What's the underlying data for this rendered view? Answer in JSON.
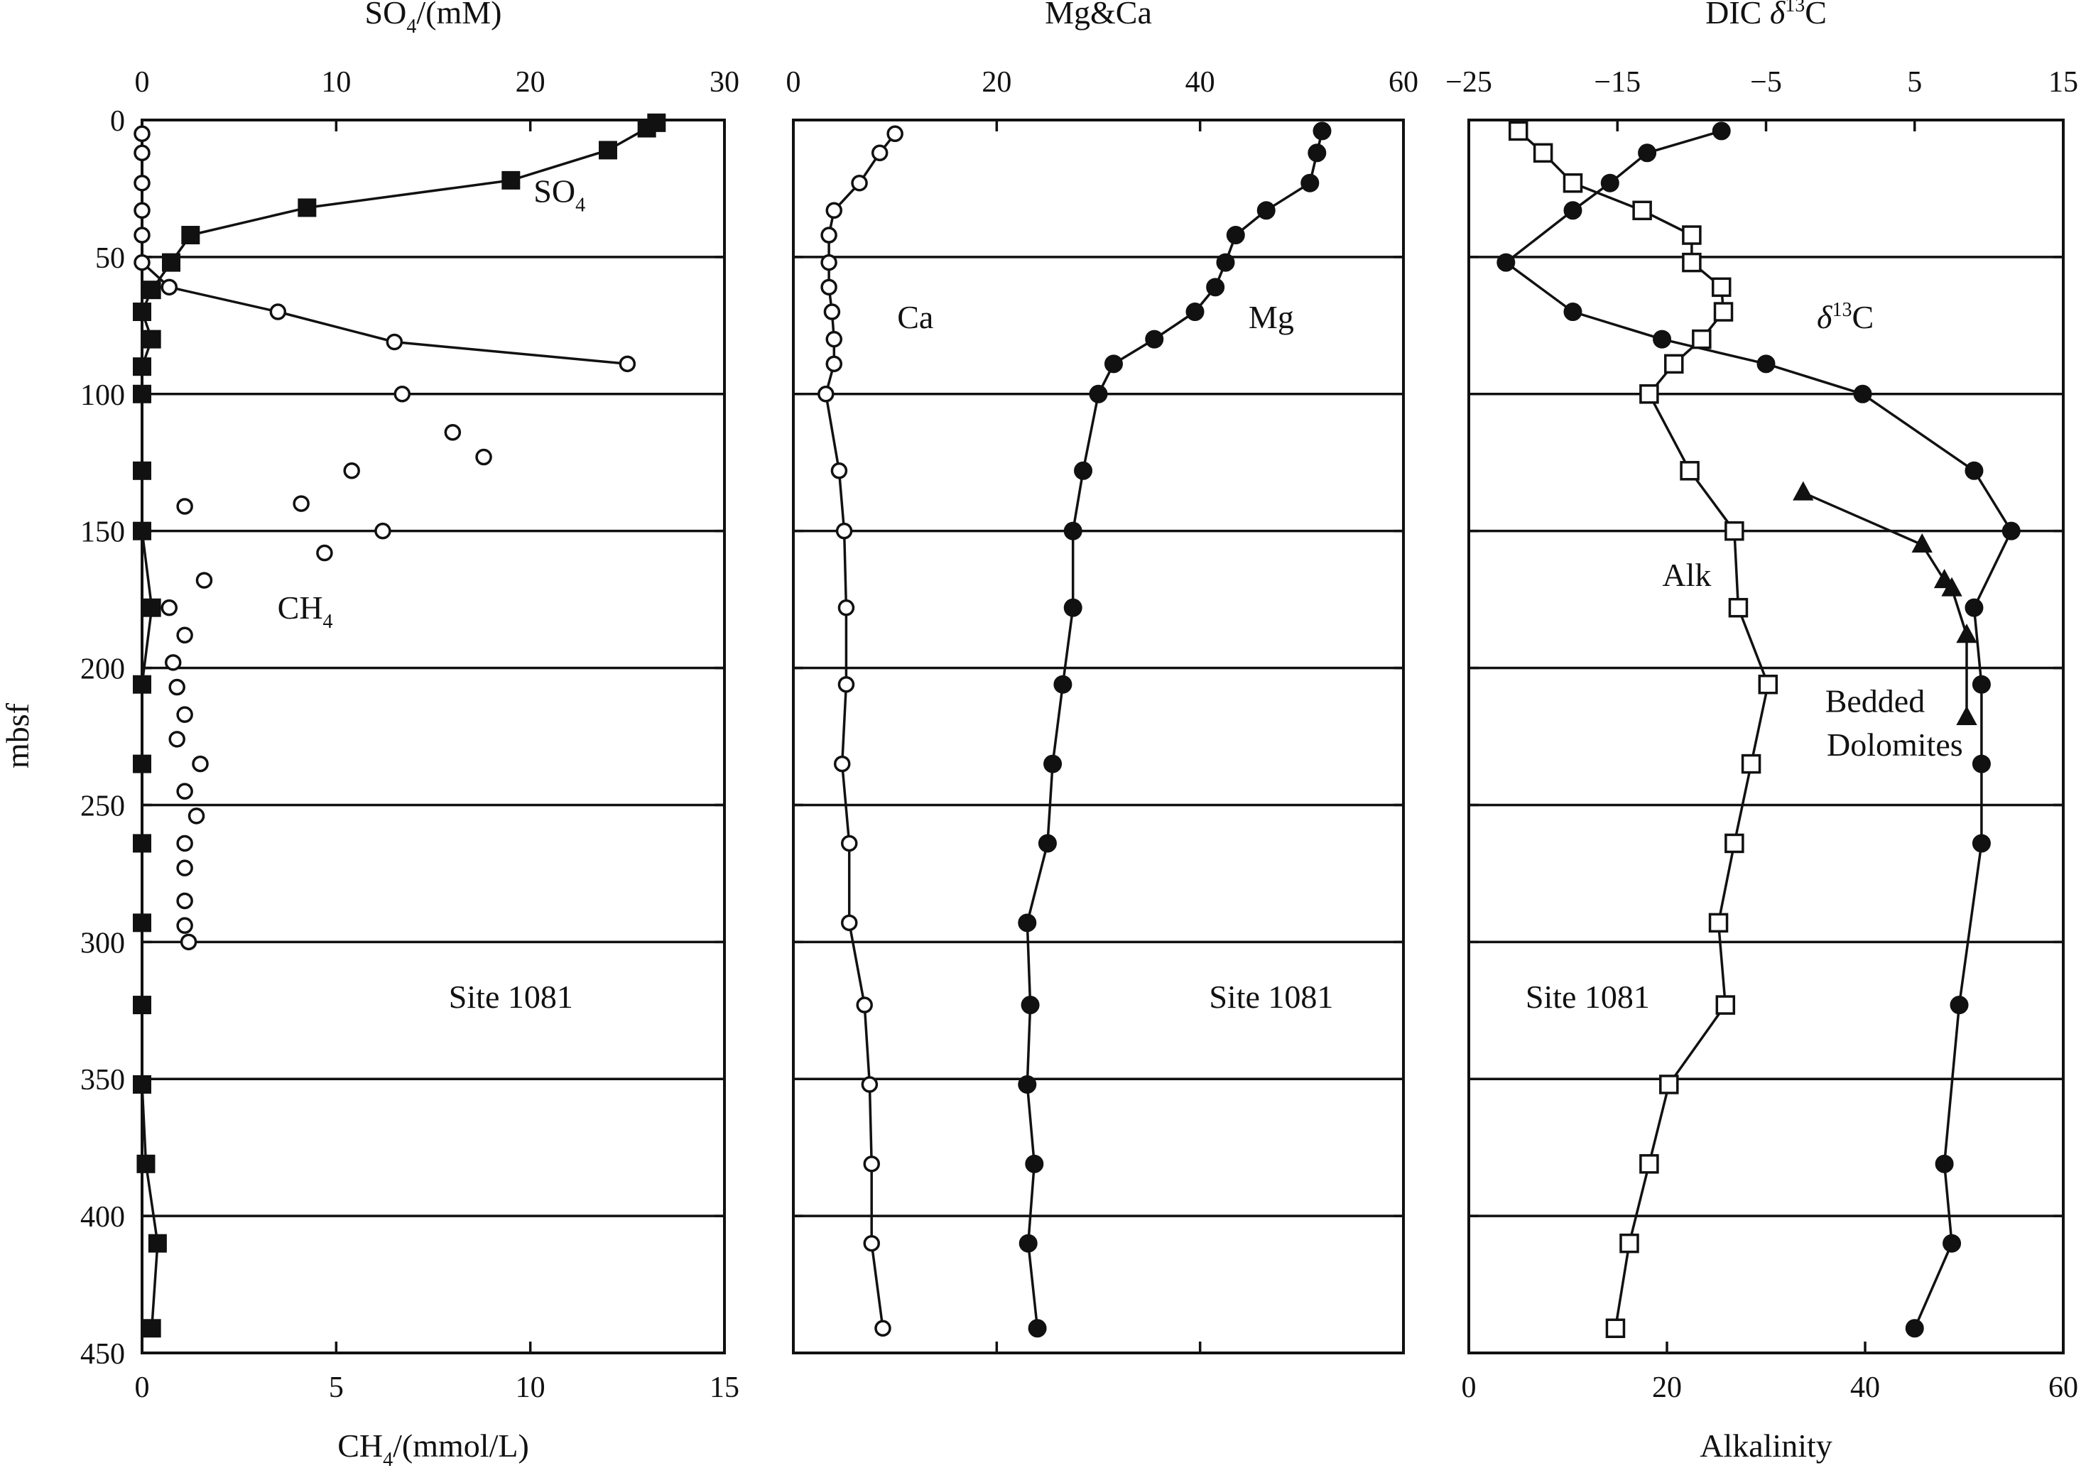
{
  "figure": {
    "y_axis_label": "mbsf",
    "site_label": "Site 1081"
  },
  "chart_data": [
    {
      "type": "scatter",
      "panel": "left",
      "top_axis": {
        "label": "SO4/(mM)",
        "lim": [
          0,
          30
        ],
        "ticks": [
          0,
          10,
          20,
          30
        ]
      },
      "bottom_axis": {
        "label": "CH4/(mmol/L)",
        "lim": [
          0,
          15
        ],
        "ticks": [
          0,
          5,
          10,
          15
        ]
      },
      "y_axis": {
        "label": "mbsf",
        "lim": [
          0,
          450
        ],
        "ticks": [
          0,
          50,
          100,
          150,
          200,
          250,
          300,
          350,
          400,
          450
        ],
        "reversed": true
      },
      "horizontal_lines_at": [
        50,
        100,
        150,
        200,
        250,
        300,
        350,
        400
      ],
      "annotations": [
        {
          "text": "SO4",
          "x": 21.5,
          "y": 30,
          "axis": "top"
        },
        {
          "text": "CH4",
          "x": 4.2,
          "y": 182,
          "axis": "bottom"
        },
        {
          "text": "Site 1081",
          "x": 9.5,
          "y": 324,
          "axis": "bottom"
        }
      ],
      "series": [
        {
          "name": "SO4",
          "axis": "top",
          "marker": "filled-square",
          "line": "smooth",
          "points": [
            [
              26.5,
              1
            ],
            [
              26,
              3
            ],
            [
              24,
              11
            ],
            [
              19,
              22
            ],
            [
              8.5,
              32
            ],
            [
              2.5,
              42
            ],
            [
              1.5,
              52
            ],
            [
              0.5,
              62
            ],
            [
              0,
              70
            ],
            [
              0.5,
              80
            ],
            [
              0,
              90
            ],
            [
              0,
              100
            ],
            [
              0,
              128
            ],
            [
              0,
              150
            ],
            [
              0.5,
              178
            ],
            [
              0,
              206
            ],
            [
              0,
              235
            ],
            [
              0,
              264
            ],
            [
              0,
              293
            ],
            [
              0,
              323
            ],
            [
              0,
              352
            ],
            [
              0.2,
              381
            ],
            [
              0.8,
              410
            ],
            [
              0.5,
              441
            ]
          ]
        },
        {
          "name": "CH4",
          "axis": "bottom",
          "marker": "open-circle",
          "line": "partial",
          "points": [
            [
              0,
              5
            ],
            [
              0,
              12
            ],
            [
              0,
              23
            ],
            [
              0,
              33
            ],
            [
              0,
              42
            ],
            [
              0,
              52
            ],
            [
              0.7,
              61
            ],
            [
              3.5,
              70
            ],
            [
              6.5,
              81
            ],
            [
              12.5,
              89
            ],
            [
              6.7,
              100
            ],
            [
              8,
              114
            ],
            [
              8.8,
              123
            ],
            [
              5.4,
              128
            ],
            [
              4.1,
              140
            ],
            [
              1.1,
              141
            ],
            [
              6.2,
              150
            ],
            [
              4.7,
              158
            ],
            [
              1.6,
              168
            ],
            [
              0.7,
              178
            ],
            [
              1.1,
              188
            ],
            [
              0.8,
              198
            ],
            [
              0.9,
              207
            ],
            [
              1.1,
              217
            ],
            [
              0.9,
              226
            ],
            [
              1.5,
              235
            ],
            [
              1.1,
              245
            ],
            [
              1.4,
              254
            ],
            [
              1.1,
              264
            ],
            [
              1.1,
              273
            ],
            [
              1.1,
              285
            ],
            [
              1.1,
              294
            ],
            [
              1.2,
              300
            ]
          ]
        }
      ]
    },
    {
      "type": "line",
      "panel": "middle",
      "top_axis": {
        "label": "Mg&Ca",
        "lim": [
          0,
          60
        ],
        "ticks": [
          0,
          20,
          40,
          60
        ]
      },
      "y_axis": {
        "lim": [
          0,
          450
        ],
        "ticks": [
          0,
          50,
          100,
          150,
          200,
          250,
          300,
          350,
          400,
          450
        ],
        "reversed": true
      },
      "horizontal_lines_at": [
        50,
        100,
        150,
        200,
        250,
        300,
        350,
        400
      ],
      "annotations": [
        {
          "text": "Ca",
          "x": 12,
          "y": 76
        },
        {
          "text": "Mg",
          "x": 47,
          "y": 76
        },
        {
          "text": "Site 1081",
          "x": 47,
          "y": 324
        }
      ],
      "series": [
        {
          "name": "Ca",
          "marker": "open-circle",
          "points": [
            [
              10,
              5
            ],
            [
              8.5,
              12
            ],
            [
              6.5,
              23
            ],
            [
              4,
              33
            ],
            [
              3.5,
              42
            ],
            [
              3.5,
              52
            ],
            [
              3.5,
              61
            ],
            [
              3.8,
              70
            ],
            [
              4,
              80
            ],
            [
              4,
              89
            ],
            [
              3.2,
              100
            ],
            [
              4.5,
              128
            ],
            [
              5,
              150
            ],
            [
              5.2,
              178
            ],
            [
              5.2,
              206
            ],
            [
              4.8,
              235
            ],
            [
              5.5,
              264
            ],
            [
              5.5,
              293
            ],
            [
              7,
              323
            ],
            [
              7.5,
              352
            ],
            [
              7.7,
              381
            ],
            [
              7.7,
              410
            ],
            [
              8.8,
              441
            ]
          ]
        },
        {
          "name": "Mg",
          "marker": "filled-circle",
          "points": [
            [
              52,
              4
            ],
            [
              51.5,
              12
            ],
            [
              50.8,
              23
            ],
            [
              46.5,
              33
            ],
            [
              43.5,
              42
            ],
            [
              42.5,
              52
            ],
            [
              41.5,
              61
            ],
            [
              39.5,
              70
            ],
            [
              35.5,
              80
            ],
            [
              31.5,
              89
            ],
            [
              30,
              100
            ],
            [
              28.5,
              128
            ],
            [
              27.5,
              150
            ],
            [
              27.5,
              178
            ],
            [
              26.5,
              206
            ],
            [
              25.5,
              235
            ],
            [
              25,
              264
            ],
            [
              23,
              293
            ],
            [
              23.3,
              323
            ],
            [
              23,
              352
            ],
            [
              23.7,
              381
            ],
            [
              23.1,
              410
            ],
            [
              24,
              441
            ]
          ]
        }
      ]
    },
    {
      "type": "line",
      "panel": "right",
      "top_axis": {
        "label": "DIC δ13C",
        "lim": [
          -25,
          15
        ],
        "ticks": [
          -25,
          -15,
          -5,
          5,
          15
        ]
      },
      "bottom_axis": {
        "label": "Alkalinity",
        "lim": [
          0,
          60
        ],
        "ticks": [
          0,
          20,
          40,
          60
        ]
      },
      "y_axis": {
        "lim": [
          0,
          450
        ],
        "ticks": [
          0,
          50,
          100,
          150,
          200,
          250,
          300,
          350,
          400,
          450
        ],
        "reversed": true
      },
      "horizontal_lines_at": [
        50,
        100,
        150,
        200,
        250,
        300,
        350,
        400
      ],
      "annotations": [
        {
          "text": "δ13C",
          "x": 38,
          "y": 76,
          "axis": "bottom"
        },
        {
          "text": "Alk",
          "x": 22,
          "y": 170,
          "axis": "bottom"
        },
        {
          "text": "Bedded",
          "x": 41,
          "y": 216,
          "axis": "bottom"
        },
        {
          "text": "Dolomites",
          "x": 43,
          "y": 232,
          "axis": "bottom"
        },
        {
          "text": "Site 1081",
          "x": 12,
          "y": 324,
          "axis": "bottom"
        }
      ],
      "series": [
        {
          "name": "δ13C",
          "axis": "top",
          "marker": "filled-circle",
          "points": [
            [
              -8,
              4
            ],
            [
              -13,
              12
            ],
            [
              -15.5,
              23
            ],
            [
              -18,
              33
            ],
            [
              -22.5,
              52
            ],
            [
              -18,
              70
            ],
            [
              -12,
              80
            ],
            [
              -5,
              89
            ],
            [
              1.5,
              100
            ],
            [
              9,
              128
            ],
            [
              11.5,
              150
            ],
            [
              9,
              178
            ],
            [
              9.5,
              206
            ],
            [
              9.5,
              235
            ],
            [
              9.5,
              264
            ],
            [
              8,
              323
            ],
            [
              7,
              381
            ],
            [
              7.5,
              410
            ],
            [
              5,
              441
            ]
          ]
        },
        {
          "name": "Alk",
          "axis": "bottom",
          "marker": "open-square",
          "points": [
            [
              5,
              4
            ],
            [
              7.5,
              12
            ],
            [
              10.5,
              23
            ],
            [
              17.5,
              33
            ],
            [
              22.5,
              42
            ],
            [
              22.5,
              52
            ],
            [
              25.5,
              61
            ],
            [
              25.7,
              70
            ],
            [
              23.5,
              80
            ],
            [
              20.7,
              89
            ],
            [
              18.2,
              100
            ],
            [
              22.3,
              128
            ],
            [
              26.8,
              150
            ],
            [
              27.2,
              178
            ],
            [
              30.2,
              206
            ],
            [
              28.5,
              235
            ],
            [
              26.8,
              264
            ],
            [
              25.2,
              293
            ],
            [
              25.9,
              323
            ],
            [
              20.2,
              352
            ],
            [
              18.2,
              381
            ],
            [
              16.2,
              410
            ],
            [
              14.8,
              441
            ]
          ]
        },
        {
          "name": "Bedded Dolomites",
          "axis": "top",
          "marker": "filled-triangle",
          "points": [
            [
              -2.5,
              136
            ],
            [
              5.5,
              155
            ],
            [
              7,
              168
            ],
            [
              7.5,
              171
            ],
            [
              8.5,
              188
            ],
            [
              8.5,
              218
            ]
          ]
        }
      ]
    }
  ]
}
